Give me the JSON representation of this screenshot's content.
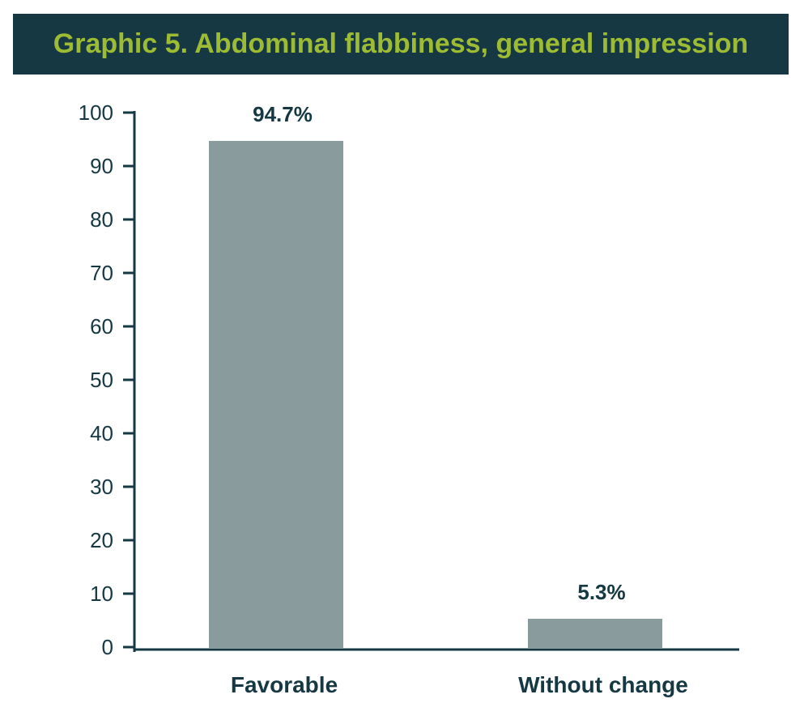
{
  "chart_data": {
    "type": "bar",
    "title": "Graphic 5. Abdominal flabbiness, general impression",
    "categories": [
      "Favorable",
      "Without change"
    ],
    "values": [
      94.7,
      5.3
    ],
    "data_labels": [
      "94.7%",
      "5.3%"
    ],
    "xlabel": "",
    "ylabel": "",
    "ylim": [
      0,
      100
    ],
    "yticks": [
      0,
      10,
      20,
      30,
      40,
      50,
      60,
      70,
      80,
      90,
      100
    ],
    "grid": false,
    "legend": "none",
    "colors": {
      "bar": "#8a9b9d",
      "axis": "#153843",
      "title_bg": "#153843",
      "title_text": "#9dbb33"
    }
  }
}
